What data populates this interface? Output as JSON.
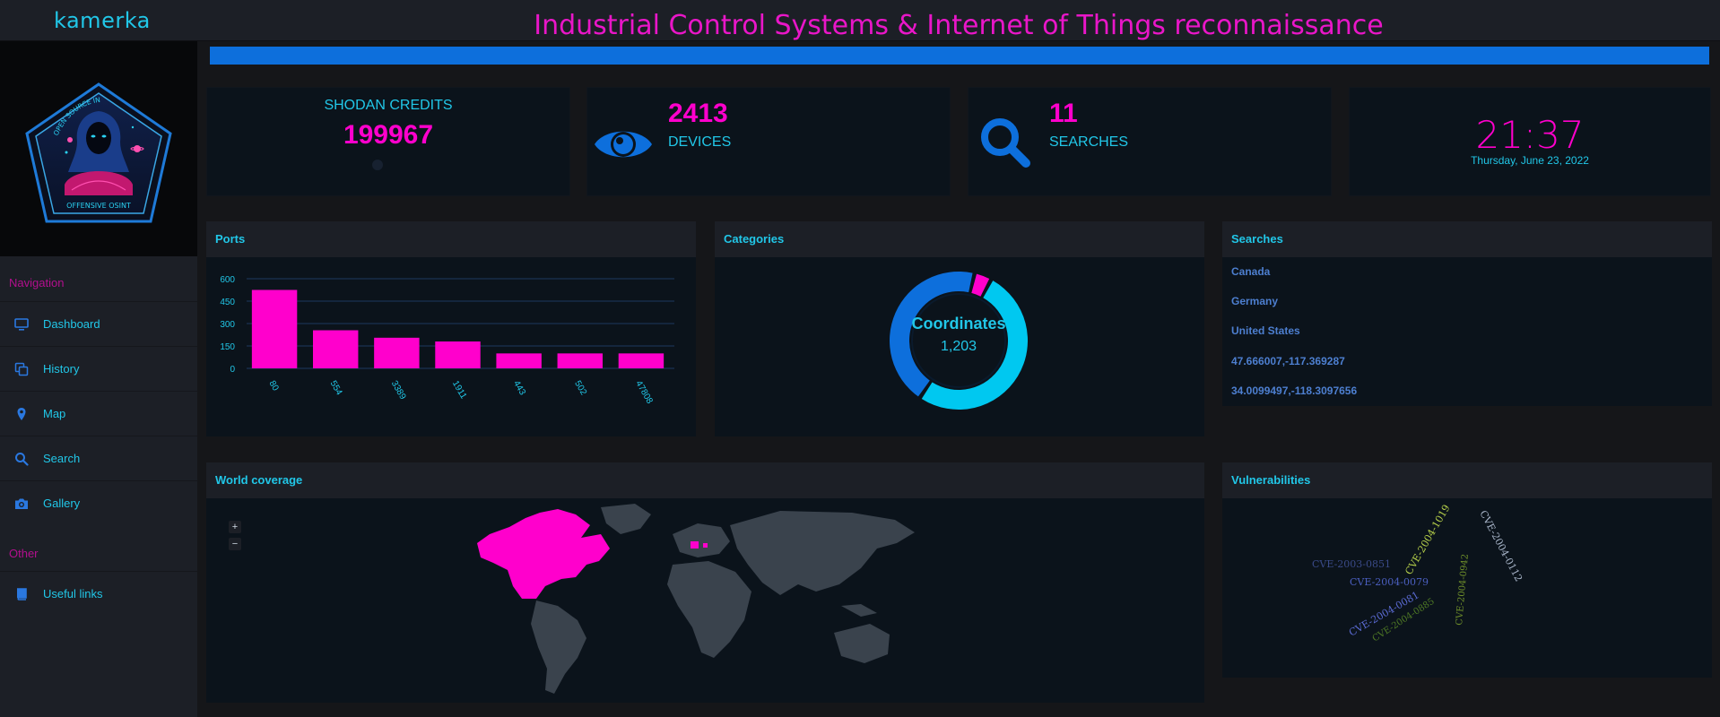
{
  "app": {
    "brand": "kamerka",
    "title": "Industrial Control Systems & Internet of Things reconnaissance"
  },
  "colors": {
    "accent": "#21c7e8",
    "magenta": "#ff00cc",
    "blue": "#0d6fdc",
    "background": "#151619"
  },
  "logo": {
    "badge_top": "OPEN SOURCE INTELLIGENCE",
    "badge_bottom": "OFFENSIVE OSINT"
  },
  "sidebar": {
    "sections": [
      {
        "header": "Navigation",
        "items": [
          {
            "label": "Dashboard",
            "icon": "monitor-icon"
          },
          {
            "label": "History",
            "icon": "copy-icon"
          },
          {
            "label": "Map",
            "icon": "map-pin-icon"
          },
          {
            "label": "Search",
            "icon": "search-icon"
          },
          {
            "label": "Gallery",
            "icon": "camera-icon"
          }
        ]
      },
      {
        "header": "Other",
        "items": [
          {
            "label": "Useful links",
            "icon": "book-icon"
          }
        ]
      }
    ]
  },
  "progress": {
    "fraction": 1.0
  },
  "stats": {
    "credits": {
      "label": "SHODAN CREDITS",
      "value": "199967"
    },
    "devices": {
      "value": "2413",
      "label": "DEVICES",
      "icon": "eye-icon"
    },
    "searches": {
      "value": "11",
      "label": "SEARCHES",
      "icon": "search-icon"
    },
    "clock": {
      "time": "21:37",
      "date": "Thursday, June 23, 2022"
    }
  },
  "ports": {
    "title": "Ports",
    "chart_data": {
      "type": "bar",
      "categories": [
        "80",
        "554",
        "3389",
        "1911",
        "443",
        "502",
        "47808"
      ],
      "values": [
        525,
        255,
        205,
        180,
        100,
        100,
        100
      ],
      "yticks": [
        "0",
        "150",
        "300",
        "450",
        "600"
      ],
      "ylim": [
        0,
        600
      ],
      "xlabel": "",
      "ylabel": ""
    }
  },
  "categories": {
    "title": "Categories",
    "center_label": "Coordinates",
    "center_value": "1,203",
    "chart_data": {
      "type": "pie",
      "values": [
        1203,
        1030,
        95
      ]
    }
  },
  "searches_panel": {
    "title": "Searches",
    "items": [
      "Canada",
      "Germany",
      "United States",
      "47.666007,-117.369287",
      "34.0099497,-118.3097656"
    ]
  },
  "world": {
    "title": "World coverage",
    "zoom_in": "+",
    "zoom_out": "−"
  },
  "vulns": {
    "title": "Vulnerabilities",
    "words": [
      {
        "text": "CVE-2003-0851",
        "color": "#3a4a88"
      },
      {
        "text": "CVE-2004-0079",
        "color": "#4b5fc0"
      },
      {
        "text": "CVE-2004-1019",
        "color": "#b7d14a"
      },
      {
        "text": "CVE-2004-0112",
        "color": "#a7b4c8"
      },
      {
        "text": "CVE-2004-0942",
        "color": "#6f8f2a"
      },
      {
        "text": "CVE-2004-0081",
        "color": "#5b6bd4"
      },
      {
        "text": "CVE-2004-0885",
        "color": "#4f7a25"
      }
    ]
  }
}
